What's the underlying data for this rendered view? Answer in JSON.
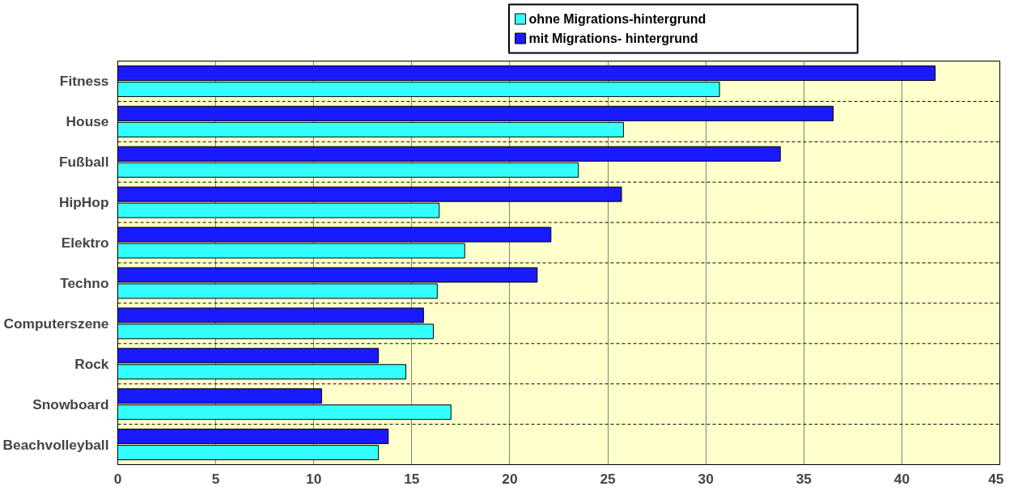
{
  "chart_data": {
    "type": "bar",
    "orientation": "horizontal",
    "categories": [
      "Fitness",
      "House",
      "Fußball",
      "HipHop",
      "Elektro",
      "Techno",
      "Computerszene",
      "Rock",
      "Snowboard",
      "Beachvolleyball"
    ],
    "series": [
      {
        "name": "ohne Migrations-hintergrund",
        "color": "#33ffff",
        "values": [
          30.7,
          25.8,
          23.5,
          16.4,
          17.7,
          16.3,
          16.1,
          14.7,
          17.0,
          13.3
        ]
      },
      {
        "name": "mit Migrations- hintergrund",
        "color": "#1a1aff",
        "values": [
          41.7,
          36.5,
          33.8,
          25.7,
          22.1,
          21.4,
          15.6,
          13.3,
          10.4,
          13.8
        ]
      }
    ],
    "xlim": [
      0,
      45
    ],
    "xticks": [
      0,
      5,
      10,
      15,
      20,
      25,
      30,
      35,
      40,
      45
    ],
    "grid": true,
    "legend": "top"
  }
}
